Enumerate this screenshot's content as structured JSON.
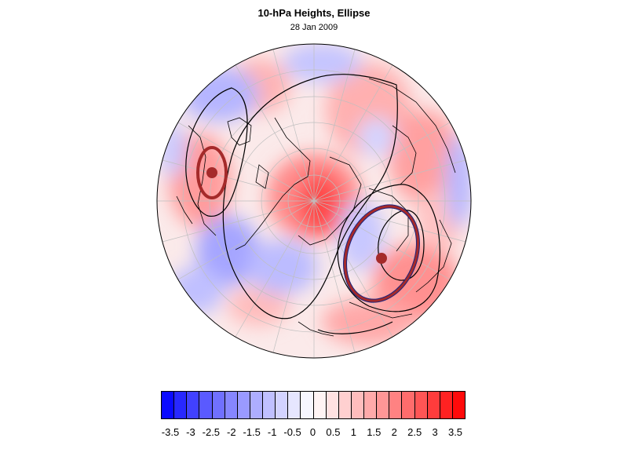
{
  "title": "10-hPa Heights, Ellipse",
  "subtitle": "28 Jan 2009",
  "colors": {
    "ellipse": "#a52a2a",
    "ellipse_inner": "#1a237e",
    "contour": "#000000",
    "coastline": "#000000",
    "graticule": "#bfbfbf"
  },
  "colorbar": {
    "swatches": [
      "#0a0aff",
      "#2828ff",
      "#4141ff",
      "#5a5aff",
      "#7070ff",
      "#8686ff",
      "#9a9aff",
      "#adadff",
      "#c0c0ff",
      "#d3d3ff",
      "#e6e6ff",
      "#f7f7ff",
      "#fff4f4",
      "#ffe2e2",
      "#ffd0d0",
      "#ffbdbd",
      "#ffaaaa",
      "#ff9696",
      "#ff8282",
      "#ff6c6c",
      "#ff5555",
      "#ff3c3c",
      "#ff2222",
      "#ff0a0a"
    ],
    "labels": [
      "-3.5",
      "-3",
      "-2.5",
      "-2",
      "-1.5",
      "-1",
      "-0.5",
      "0",
      "0.5",
      "1",
      "1.5",
      "2",
      "2.5",
      "3",
      "3.5"
    ]
  }
}
